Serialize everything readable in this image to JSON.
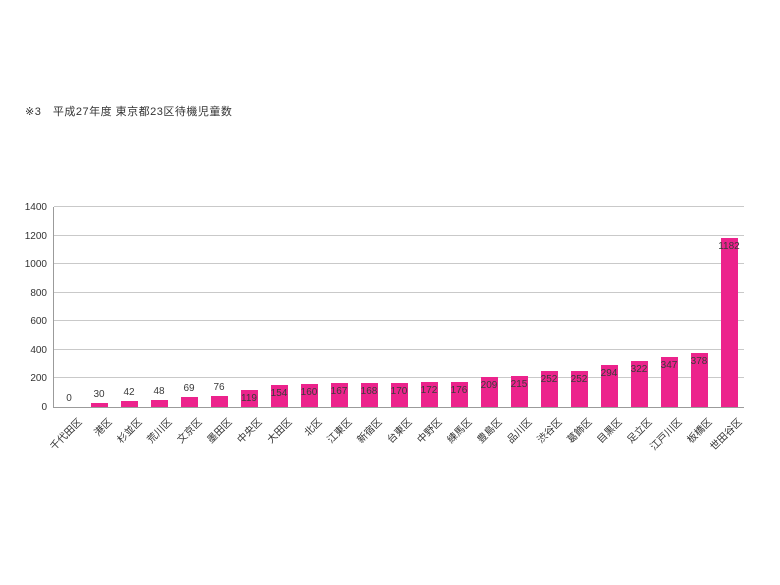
{
  "title": "※3　平成27年度 東京都23区待機児童数",
  "chart_data": {
    "type": "bar",
    "title": "※3　平成27年度 東京都23区待機児童数",
    "categories": [
      "千代田区",
      "港区",
      "杉並区",
      "荒川区",
      "文京区",
      "墨田区",
      "中央区",
      "大田区",
      "北区",
      "江東区",
      "新宿区",
      "台東区",
      "中野区",
      "練馬区",
      "豊島区",
      "品川区",
      "渋谷区",
      "葛飾区",
      "目黒区",
      "足立区",
      "江戸川区",
      "板橋区",
      "世田谷区"
    ],
    "values": [
      0,
      30,
      42,
      48,
      69,
      76,
      119,
      154,
      160,
      167,
      168,
      170,
      172,
      176,
      209,
      215,
      252,
      252,
      294,
      322,
      347,
      378,
      1182
    ],
    "xlabel": "",
    "ylabel": "",
    "ylim": [
      0,
      1400
    ],
    "yticks": [
      0,
      200,
      400,
      600,
      800,
      1000,
      1200,
      1400
    ],
    "grid": true,
    "legend": "none",
    "data_labels": true,
    "colors": {
      "bar": "#ec238c",
      "gridline": "#c9c9c9",
      "axis_line": "#9b9b9b",
      "label_text": "#3a3a3a",
      "tick_text": "#333333"
    }
  }
}
